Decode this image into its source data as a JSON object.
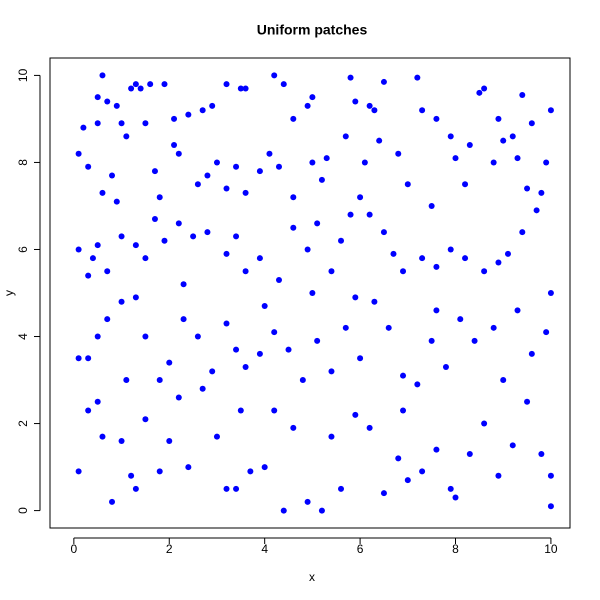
{
  "chart_data": {
    "type": "scatter",
    "title": "Uniform patches",
    "x_label": "x",
    "y_label": "y",
    "color": "#0000ff",
    "xlim": [
      -0.5,
      10.4
    ],
    "ylim": [
      -0.4,
      10.4
    ],
    "xticks": [
      0,
      2,
      4,
      6,
      8,
      10
    ],
    "yticks": [
      0,
      2,
      4,
      6,
      8,
      10
    ],
    "x": [
      0.6,
      1.2,
      1.3,
      1.6,
      1.9,
      1.4,
      0.5,
      0.7,
      0.9,
      0.5,
      0.2,
      1.0,
      2.1,
      2.4,
      2.9,
      3.2,
      3.5,
      3.6,
      2.7,
      4.2,
      4.4,
      4.6,
      4.9,
      5.0,
      5.8,
      5.9,
      6.2,
      6.3,
      6.5,
      7.2,
      7.3,
      7.6,
      8.6,
      8.5,
      8.9,
      9.4,
      9.6,
      10.0,
      9.0,
      9.2,
      0.1,
      0.3,
      0.6,
      0.8,
      1.1,
      1.5,
      1.7,
      2.1,
      2.2,
      2.6,
      3.0,
      3.2,
      3.4,
      3.6,
      3.9,
      4.1,
      4.3,
      5.0,
      5.3,
      5.7,
      6.1,
      6.4,
      6.8,
      7.0,
      7.5,
      7.9,
      8.0,
      8.3,
      8.8,
      9.3,
      9.5,
      9.8,
      9.9,
      8.2,
      6.0,
      5.2,
      4.6,
      0.9,
      1.8,
      2.8,
      0.1,
      0.4,
      0.5,
      0.3,
      0.7,
      1.0,
      1.3,
      1.5,
      1.7,
      1.9,
      2.2,
      2.5,
      2.8,
      3.2,
      3.4,
      3.6,
      3.9,
      4.3,
      4.6,
      4.9,
      5.1,
      5.4,
      5.6,
      5.8,
      6.2,
      6.5,
      6.7,
      6.9,
      7.3,
      7.6,
      7.9,
      8.2,
      8.6,
      8.9,
      9.1,
      9.4,
      9.7,
      10.0,
      5.0,
      2.3,
      0.1,
      0.3,
      0.5,
      0.7,
      1.0,
      1.3,
      1.5,
      1.8,
      2.0,
      2.3,
      2.6,
      2.9,
      3.2,
      3.4,
      3.6,
      3.9,
      4.2,
      4.5,
      4.8,
      5.1,
      5.4,
      5.7,
      6.0,
      6.3,
      6.6,
      6.9,
      7.2,
      7.5,
      7.8,
      8.1,
      8.4,
      8.8,
      9.0,
      9.3,
      9.6,
      9.9,
      1.1,
      5.9,
      7.6,
      4.0,
      0.1,
      0.3,
      0.5,
      0.6,
      0.8,
      1.0,
      1.2,
      1.3,
      1.5,
      1.8,
      2.0,
      2.2,
      2.4,
      2.7,
      3.0,
      3.2,
      3.4,
      3.7,
      4.0,
      4.2,
      4.4,
      4.6,
      4.9,
      5.2,
      5.4,
      5.6,
      5.9,
      6.2,
      6.5,
      6.8,
      7.0,
      7.3,
      7.6,
      7.9,
      8.0,
      8.3,
      8.6,
      8.9,
      9.2,
      9.5,
      9.8,
      10.0,
      10.0,
      3.5,
      6.9
    ],
    "y": [
      10.0,
      9.7,
      9.8,
      9.8,
      9.8,
      9.7,
      9.5,
      9.4,
      9.3,
      8.9,
      8.8,
      8.9,
      9.0,
      9.1,
      9.3,
      9.8,
      9.7,
      9.7,
      9.2,
      10.0,
      9.8,
      9.0,
      9.3,
      9.5,
      9.95,
      9.4,
      9.3,
      9.2,
      9.85,
      9.95,
      9.2,
      9.0,
      9.7,
      9.6,
      9.0,
      9.55,
      8.9,
      9.2,
      8.5,
      8.6,
      8.2,
      7.9,
      7.3,
      7.7,
      8.6,
      8.9,
      7.8,
      8.4,
      8.2,
      7.5,
      8.0,
      7.4,
      7.9,
      7.3,
      7.8,
      8.2,
      7.9,
      8.0,
      8.1,
      8.6,
      8.0,
      8.5,
      8.2,
      7.5,
      7.0,
      8.6,
      8.1,
      8.4,
      8.0,
      8.1,
      7.4,
      7.3,
      8.0,
      7.5,
      7.2,
      7.6,
      7.2,
      7.1,
      7.2,
      7.7,
      6.0,
      5.8,
      6.1,
      5.4,
      5.5,
      6.3,
      6.1,
      5.8,
      6.7,
      6.2,
      6.6,
      6.3,
      6.4,
      5.9,
      6.3,
      5.5,
      5.8,
      5.3,
      6.5,
      6.0,
      6.6,
      5.5,
      6.2,
      6.8,
      6.8,
      6.4,
      5.9,
      5.5,
      5.8,
      5.6,
      6.0,
      5.8,
      5.5,
      5.7,
      5.9,
      6.4,
      6.9,
      5.0,
      5.0,
      5.2,
      3.5,
      3.5,
      4.0,
      4.4,
      4.8,
      4.9,
      4.0,
      3.0,
      3.4,
      4.4,
      4.0,
      3.2,
      4.3,
      3.7,
      3.3,
      3.6,
      4.1,
      3.7,
      3.0,
      3.9,
      3.2,
      4.2,
      3.5,
      4.8,
      4.2,
      3.1,
      2.9,
      3.9,
      3.3,
      4.4,
      3.9,
      4.2,
      3.0,
      4.6,
      3.6,
      4.1,
      3.0,
      4.9,
      4.6,
      4.7,
      0.9,
      2.3,
      2.5,
      1.7,
      0.2,
      1.6,
      0.8,
      0.5,
      2.1,
      0.9,
      1.6,
      2.6,
      1.0,
      2.8,
      1.7,
      0.5,
      0.5,
      0.9,
      1.0,
      2.3,
      0.0,
      1.9,
      0.2,
      0.0,
      1.7,
      0.5,
      2.2,
      1.9,
      0.4,
      1.2,
      0.7,
      0.9,
      1.4,
      0.5,
      0.3,
      1.3,
      2.0,
      0.8,
      1.5,
      2.5,
      1.3,
      0.1,
      0.8,
      2.3,
      2.3
    ]
  }
}
